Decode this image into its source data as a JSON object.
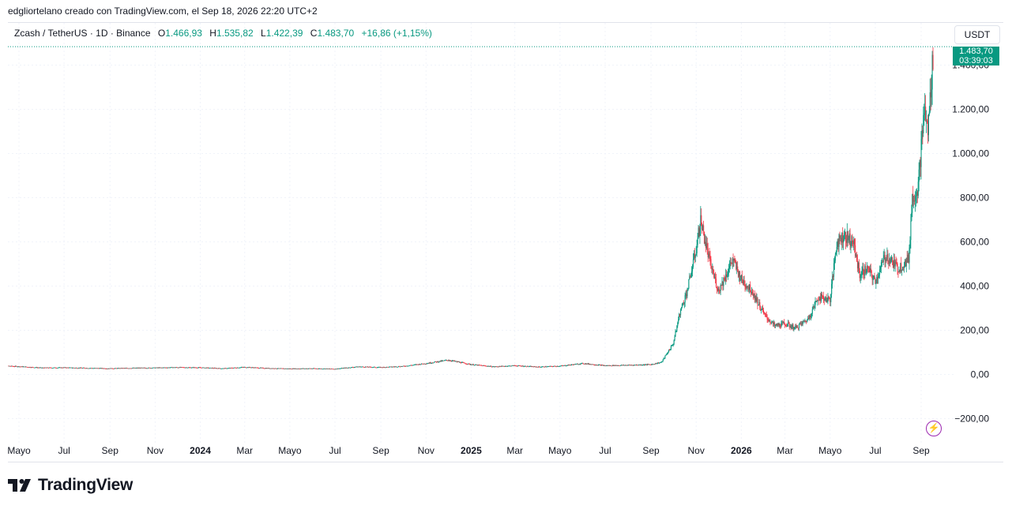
{
  "header": {
    "text": "edgliortelano creado con TradingView.com, el Sep 18, 2026 22:20 UTC+2"
  },
  "legend": {
    "symbol": "Zcash / TetherUS · 1D · Binance",
    "open_label": "O",
    "open": "1.466,93",
    "high_label": "H",
    "high": "1.535,82",
    "low_label": "L",
    "low": "1.422,39",
    "close_label": "C",
    "close": "1.483,70",
    "change": "+16,86 (+1,15%)"
  },
  "currency_button": "USDT",
  "price_tag": {
    "price": "1.483,70",
    "countdown": "03:39:03"
  },
  "logo": {
    "text": "TradingView"
  },
  "colors": {
    "up": "#089981",
    "down": "#f23645",
    "grid": "#f0f3fa",
    "axis_text": "#131722",
    "accent": "#9c27b0"
  },
  "icons": {
    "lightning": "lightning-icon",
    "logo": "tradingview-logo-icon"
  },
  "chart_data": {
    "type": "candlestick",
    "symbol": "Zcash / TetherUS",
    "interval": "1D",
    "exchange": "Binance",
    "price_axis_side": "right",
    "ylim": [
      -250,
      1540
    ],
    "y_ticks": [
      -200,
      0,
      200,
      400,
      600,
      800,
      1000,
      1200,
      1400
    ],
    "y_tick_labels": [
      "−200,00",
      "0,00",
      "200,00",
      "400,00",
      "600,00",
      "800,00",
      "1.000,00",
      "1.200,00",
      "1.400,00"
    ],
    "x_ticks": [
      {
        "date": "2023-05-01",
        "label": "Mayo",
        "bold": false
      },
      {
        "date": "2023-07-01",
        "label": "Jul",
        "bold": false
      },
      {
        "date": "2023-09-01",
        "label": "Sep",
        "bold": false
      },
      {
        "date": "2023-11-01",
        "label": "Nov",
        "bold": false
      },
      {
        "date": "2024-01-01",
        "label": "2024",
        "bold": true
      },
      {
        "date": "2024-03-01",
        "label": "Mar",
        "bold": false
      },
      {
        "date": "2024-05-01",
        "label": "Mayo",
        "bold": false
      },
      {
        "date": "2024-07-01",
        "label": "Jul",
        "bold": false
      },
      {
        "date": "2024-09-01",
        "label": "Sep",
        "bold": false
      },
      {
        "date": "2024-11-01",
        "label": "Nov",
        "bold": false
      },
      {
        "date": "2025-01-01",
        "label": "2025",
        "bold": true
      },
      {
        "date": "2025-03-01",
        "label": "Mar",
        "bold": false
      },
      {
        "date": "2025-05-01",
        "label": "Mayo",
        "bold": false
      },
      {
        "date": "2025-07-01",
        "label": "Jul",
        "bold": false
      },
      {
        "date": "2025-09-01",
        "label": "Sep",
        "bold": false
      },
      {
        "date": "2025-11-01",
        "label": "Nov",
        "bold": false
      },
      {
        "date": "2026-01-01",
        "label": "2026",
        "bold": true
      },
      {
        "date": "2026-03-01",
        "label": "Mar",
        "bold": false
      },
      {
        "date": "2026-05-01",
        "label": "Mayo",
        "bold": false
      },
      {
        "date": "2026-07-01",
        "label": "Jul",
        "bold": false
      },
      {
        "date": "2026-09-01",
        "label": "Sep",
        "bold": false
      }
    ],
    "series_approx": [
      [
        "2023-04-01",
        40
      ],
      [
        "2023-05-01",
        36
      ],
      [
        "2023-06-01",
        30
      ],
      [
        "2023-07-01",
        31
      ],
      [
        "2023-08-01",
        29
      ],
      [
        "2023-09-01",
        27
      ],
      [
        "2023-10-01",
        29
      ],
      [
        "2023-11-01",
        30
      ],
      [
        "2023-12-01",
        32
      ],
      [
        "2024-01-01",
        31
      ],
      [
        "2024-02-01",
        27
      ],
      [
        "2024-03-01",
        33
      ],
      [
        "2024-04-01",
        28
      ],
      [
        "2024-05-01",
        26
      ],
      [
        "2024-06-01",
        27
      ],
      [
        "2024-07-01",
        25
      ],
      [
        "2024-08-01",
        35
      ],
      [
        "2024-09-01",
        32
      ],
      [
        "2024-10-01",
        37
      ],
      [
        "2024-11-01",
        50
      ],
      [
        "2024-12-01",
        65
      ],
      [
        "2025-01-01",
        45
      ],
      [
        "2025-02-01",
        35
      ],
      [
        "2025-03-01",
        40
      ],
      [
        "2025-04-01",
        34
      ],
      [
        "2025-05-01",
        38
      ],
      [
        "2025-06-01",
        50
      ],
      [
        "2025-07-01",
        40
      ],
      [
        "2025-08-01",
        42
      ],
      [
        "2025-09-01",
        45
      ],
      [
        "2025-09-15",
        55
      ],
      [
        "2025-10-01",
        140
      ],
      [
        "2025-10-10",
        280
      ],
      [
        "2025-10-20",
        380
      ],
      [
        "2025-11-01",
        570
      ],
      [
        "2025-11-07",
        700
      ],
      [
        "2025-11-12",
        620
      ],
      [
        "2025-11-20",
        500
      ],
      [
        "2025-12-01",
        380
      ],
      [
        "2025-12-10",
        440
      ],
      [
        "2025-12-20",
        520
      ],
      [
        "2026-01-01",
        430
      ],
      [
        "2026-01-15",
        380
      ],
      [
        "2026-02-01",
        270
      ],
      [
        "2026-02-15",
        220
      ],
      [
        "2026-03-01",
        230
      ],
      [
        "2026-03-15",
        210
      ],
      [
        "2026-04-01",
        250
      ],
      [
        "2026-04-15",
        350
      ],
      [
        "2026-05-01",
        340
      ],
      [
        "2026-05-10",
        600
      ],
      [
        "2026-05-20",
        630
      ],
      [
        "2026-06-01",
        600
      ],
      [
        "2026-06-10",
        450
      ],
      [
        "2026-06-20",
        480
      ],
      [
        "2026-07-01",
        420
      ],
      [
        "2026-07-15",
        540
      ],
      [
        "2026-08-01",
        480
      ],
      [
        "2026-08-15",
        520
      ],
      [
        "2026-08-20",
        800
      ],
      [
        "2026-08-28",
        850
      ],
      [
        "2026-09-05",
        1200
      ],
      [
        "2026-09-10",
        1100
      ],
      [
        "2026-09-18",
        1484
      ]
    ],
    "last_price": 1483.7
  }
}
